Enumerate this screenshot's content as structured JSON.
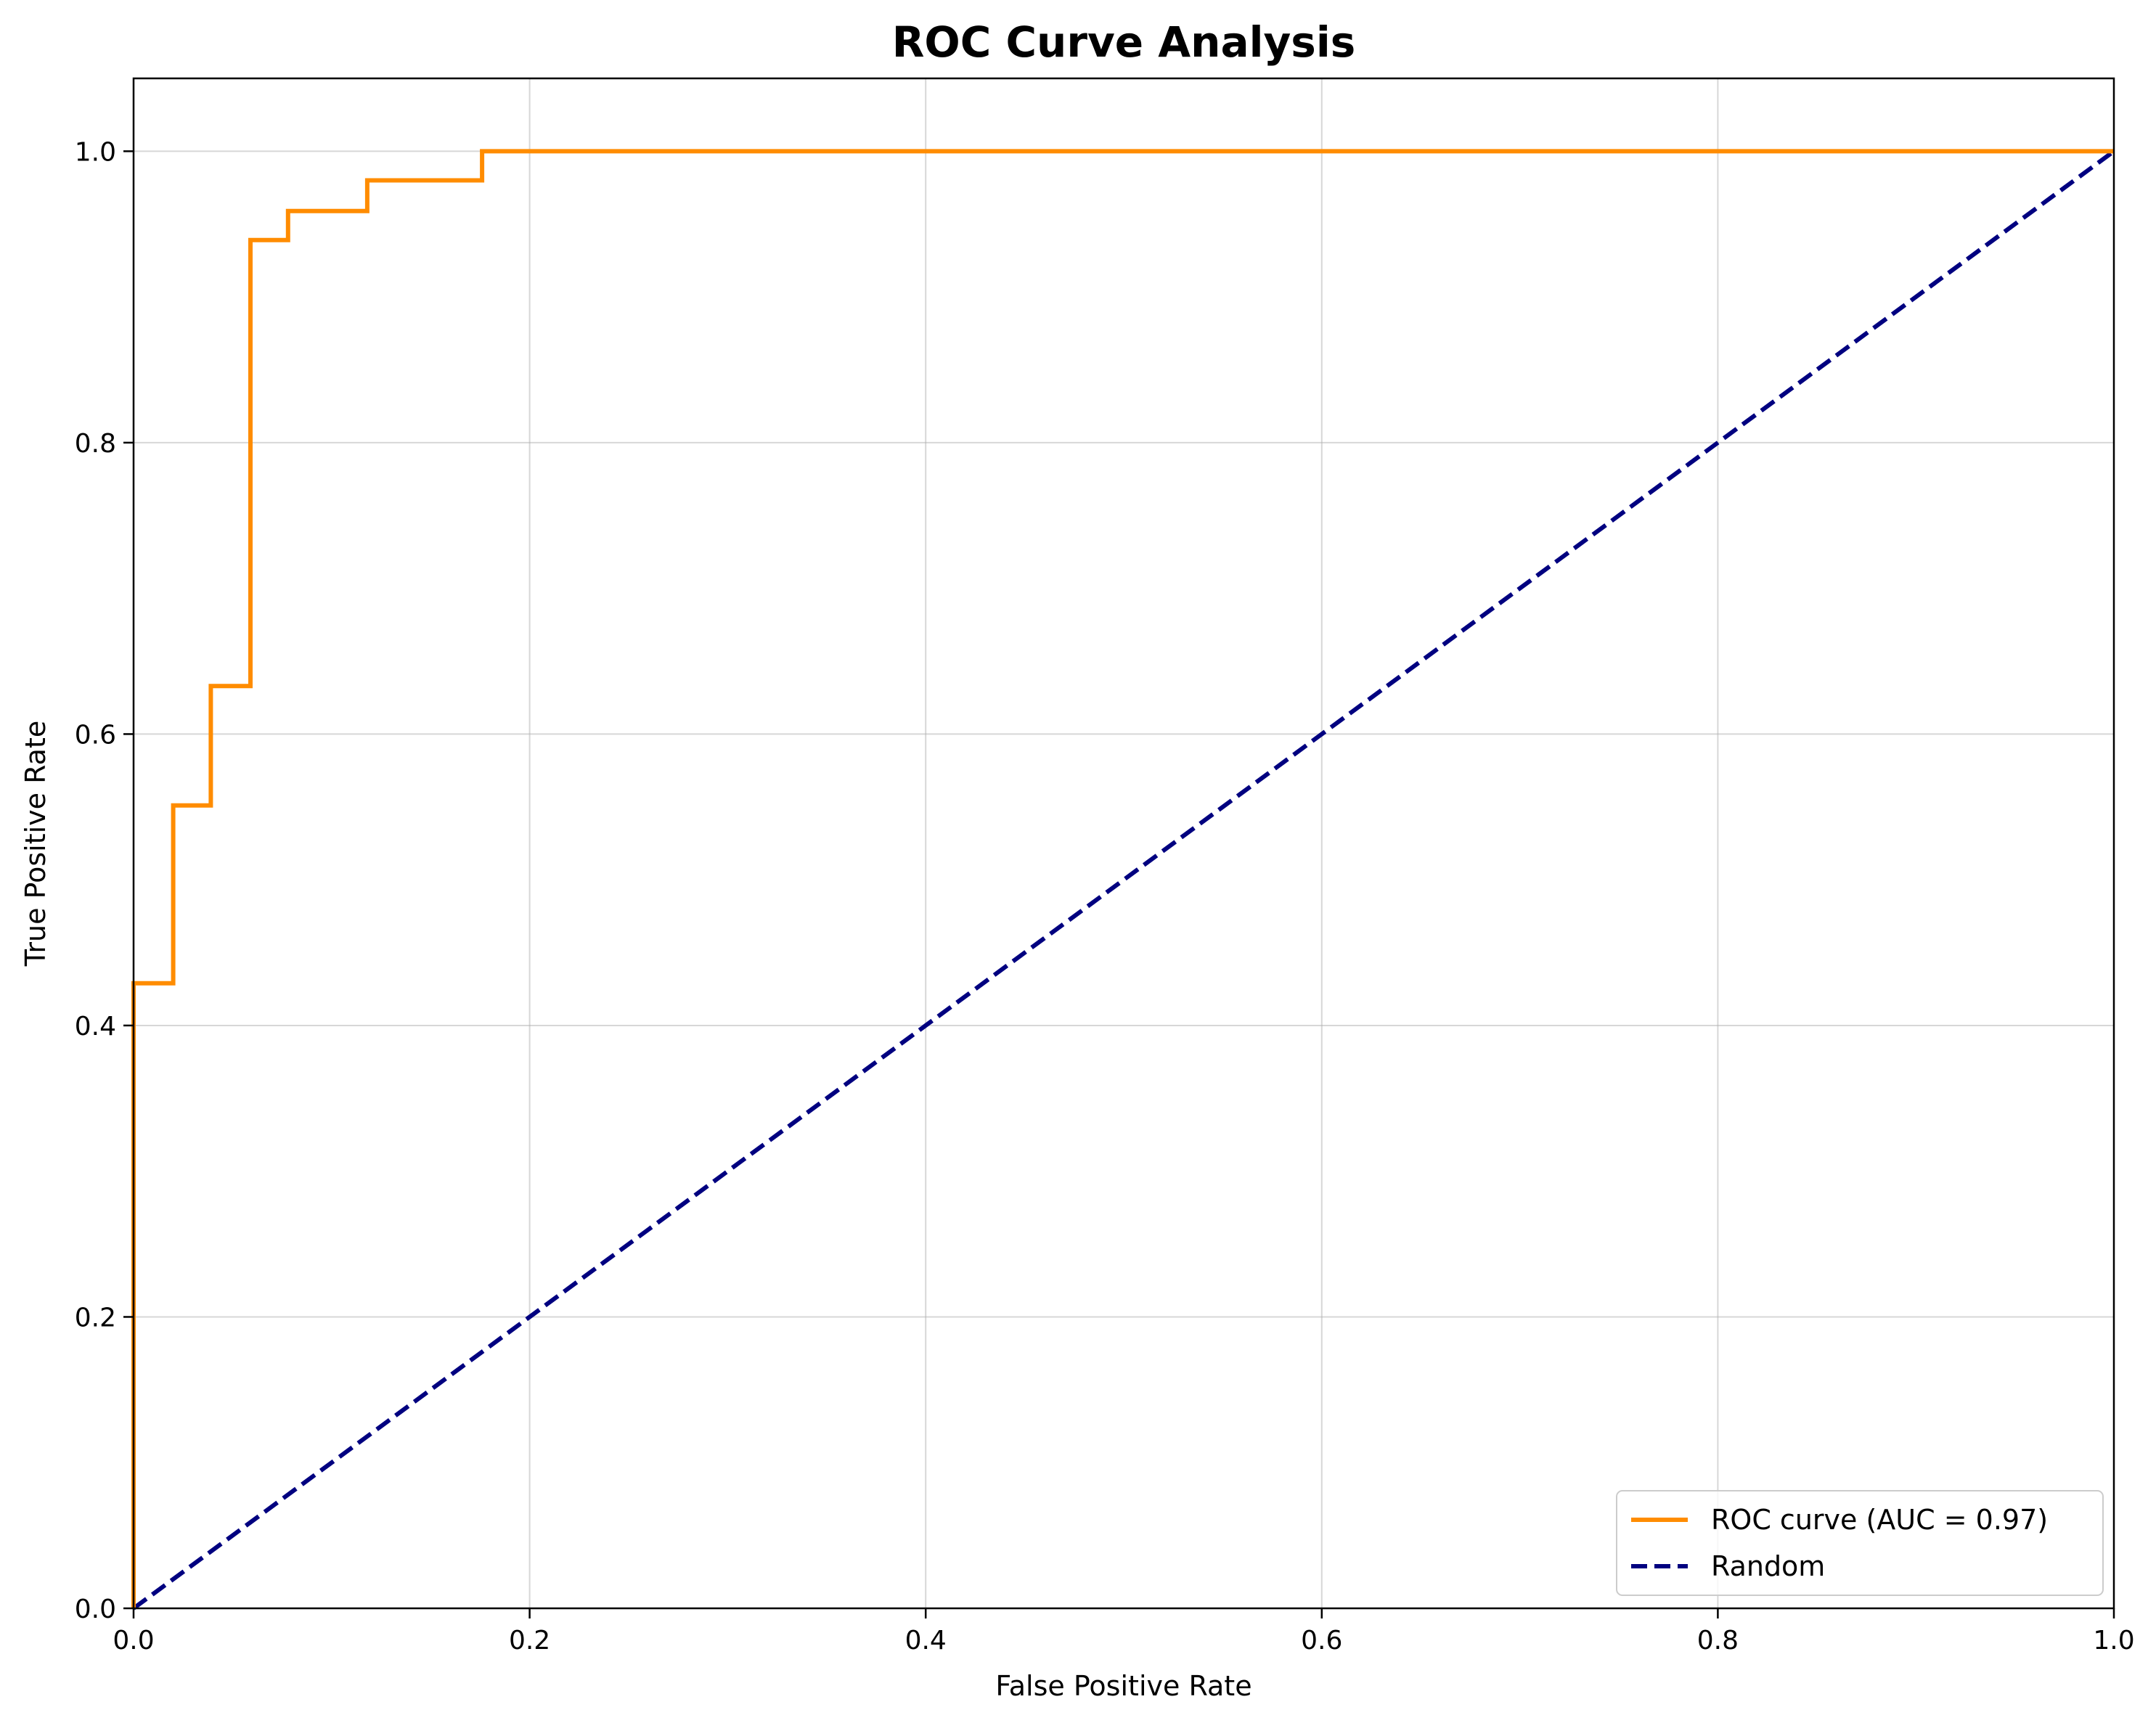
{
  "chart_data": {
    "type": "line",
    "title": "ROC Curve Analysis",
    "xlabel": "False Positive Rate",
    "ylabel": "True Positive Rate",
    "xlim": [
      0.0,
      1.0
    ],
    "ylim": [
      0.0,
      1.05
    ],
    "xticks": [
      0.0,
      0.2,
      0.4,
      0.6,
      0.8,
      1.0
    ],
    "yticks": [
      0.0,
      0.2,
      0.4,
      0.6,
      0.8,
      1.0
    ],
    "xtick_labels": [
      "0.0",
      "0.2",
      "0.4",
      "0.6",
      "0.8",
      "1.0"
    ],
    "ytick_labels": [
      "0.0",
      "0.2",
      "0.4",
      "0.6",
      "0.8",
      "1.0"
    ],
    "grid": true,
    "legend_position": "lower-right",
    "series": [
      {
        "name": "ROC curve (AUC = 0.97)",
        "color": "#ff8c00",
        "style": "solid",
        "x": [
          0.0,
          0.0,
          0.02,
          0.02,
          0.039,
          0.039,
          0.059,
          0.059,
          0.078,
          0.078,
          0.118,
          0.118,
          0.176,
          0.176,
          1.0
        ],
        "y": [
          0.0,
          0.429,
          0.429,
          0.551,
          0.551,
          0.633,
          0.633,
          0.939,
          0.939,
          0.959,
          0.959,
          0.98,
          0.98,
          1.0,
          1.0
        ]
      },
      {
        "name": "Random",
        "color": "#000080",
        "style": "dashed",
        "x": [
          0.0,
          1.0
        ],
        "y": [
          0.0,
          1.0
        ]
      }
    ]
  }
}
